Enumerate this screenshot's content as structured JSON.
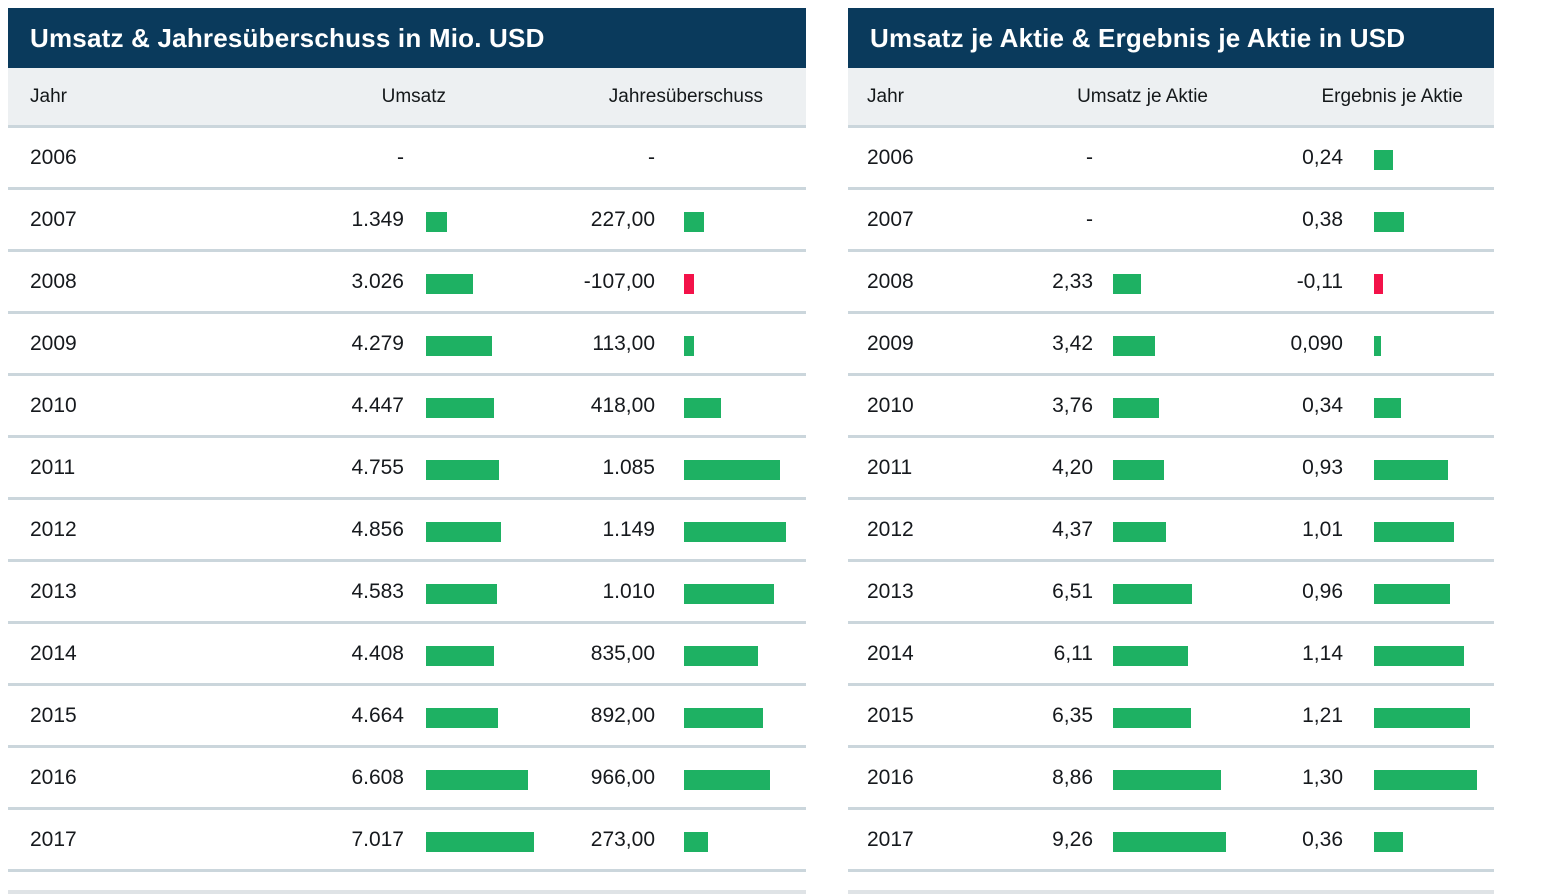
{
  "colors": {
    "positive": "#1eb163",
    "negative": "#f31249",
    "header_bg": "#0a3a5c",
    "subheader_bg": "#edf0f2",
    "separator": "#cbd6dc"
  },
  "tables": [
    {
      "title": "Umsatz & Jahresüberschuss in Mio. USD",
      "columns": [
        "Jahr",
        "Umsatz",
        "Jahresüberschuss"
      ],
      "rows": [
        {
          "year": "2006",
          "v1": "-",
          "n1": null,
          "v2": "-",
          "n2": null
        },
        {
          "year": "2007",
          "v1": "1.349",
          "n1": 1349,
          "v2": "227,00",
          "n2": 227
        },
        {
          "year": "2008",
          "v1": "3.026",
          "n1": 3026,
          "v2": "-107,00",
          "n2": -107
        },
        {
          "year": "2009",
          "v1": "4.279",
          "n1": 4279,
          "v2": "113,00",
          "n2": 113
        },
        {
          "year": "2010",
          "v1": "4.447",
          "n1": 4447,
          "v2": "418,00",
          "n2": 418
        },
        {
          "year": "2011",
          "v1": "4.755",
          "n1": 4755,
          "v2": "1.085",
          "n2": 1085
        },
        {
          "year": "2012",
          "v1": "4.856",
          "n1": 4856,
          "v2": "1.149",
          "n2": 1149
        },
        {
          "year": "2013",
          "v1": "4.583",
          "n1": 4583,
          "v2": "1.010",
          "n2": 1010
        },
        {
          "year": "2014",
          "v1": "4.408",
          "n1": 4408,
          "v2": "835,00",
          "n2": 835
        },
        {
          "year": "2015",
          "v1": "4.664",
          "n1": 4664,
          "v2": "892,00",
          "n2": 892
        },
        {
          "year": "2016",
          "v1": "6.608",
          "n1": 6608,
          "v2": "966,00",
          "n2": 966
        },
        {
          "year": "2017",
          "v1": "7.017",
          "n1": 7017,
          "v2": "273,00",
          "n2": 273
        }
      ]
    },
    {
      "title": "Umsatz je Aktie & Ergebnis je Aktie in USD",
      "columns": [
        "Jahr",
        "Umsatz je Aktie",
        "Ergebnis je Aktie"
      ],
      "rows": [
        {
          "year": "2006",
          "v1": "-",
          "n1": null,
          "v2": "0,24",
          "n2": 0.24
        },
        {
          "year": "2007",
          "v1": "-",
          "n1": null,
          "v2": "0,38",
          "n2": 0.38
        },
        {
          "year": "2008",
          "v1": "2,33",
          "n1": 2.33,
          "v2": "-0,11",
          "n2": -0.11
        },
        {
          "year": "2009",
          "v1": "3,42",
          "n1": 3.42,
          "v2": "0,090",
          "n2": 0.09
        },
        {
          "year": "2010",
          "v1": "3,76",
          "n1": 3.76,
          "v2": "0,34",
          "n2": 0.34
        },
        {
          "year": "2011",
          "v1": "4,20",
          "n1": 4.2,
          "v2": "0,93",
          "n2": 0.93
        },
        {
          "year": "2012",
          "v1": "4,37",
          "n1": 4.37,
          "v2": "1,01",
          "n2": 1.01
        },
        {
          "year": "2013",
          "v1": "6,51",
          "n1": 6.51,
          "v2": "0,96",
          "n2": 0.96
        },
        {
          "year": "2014",
          "v1": "6,11",
          "n1": 6.11,
          "v2": "1,14",
          "n2": 1.14
        },
        {
          "year": "2015",
          "v1": "6,35",
          "n1": 6.35,
          "v2": "1,21",
          "n2": 1.21
        },
        {
          "year": "2016",
          "v1": "8,86",
          "n1": 8.86,
          "v2": "1,30",
          "n2": 1.3
        },
        {
          "year": "2017",
          "v1": "9,26",
          "n1": 9.26,
          "v2": "0,36",
          "n2": 0.36
        }
      ]
    }
  ],
  "chart_data": [
    {
      "type": "table",
      "title": "Umsatz & Jahresüberschuss in Mio. USD",
      "columns": [
        "Jahr",
        "Umsatz",
        "Jahresüberschuss"
      ],
      "years": [
        "2006",
        "2007",
        "2008",
        "2009",
        "2010",
        "2011",
        "2012",
        "2013",
        "2014",
        "2015",
        "2016",
        "2017"
      ],
      "series": [
        {
          "name": "Umsatz",
          "values": [
            null,
            1349,
            3026,
            4279,
            4447,
            4755,
            4856,
            4583,
            4408,
            4664,
            6608,
            7017
          ]
        },
        {
          "name": "Jahresüberschuss",
          "values": [
            null,
            227,
            -107,
            113,
            418,
            1085,
            1149,
            1010,
            835,
            892,
            966,
            273
          ]
        }
      ],
      "bars": "inline horizontal bars per cell, width proportional to column maximum; green = positive, red = negative"
    },
    {
      "type": "table",
      "title": "Umsatz je Aktie & Ergebnis je Aktie in USD",
      "columns": [
        "Jahr",
        "Umsatz je Aktie",
        "Ergebnis je Aktie"
      ],
      "years": [
        "2006",
        "2007",
        "2008",
        "2009",
        "2010",
        "2011",
        "2012",
        "2013",
        "2014",
        "2015",
        "2016",
        "2017"
      ],
      "series": [
        {
          "name": "Umsatz je Aktie",
          "values": [
            null,
            null,
            2.33,
            3.42,
            3.76,
            4.2,
            4.37,
            6.51,
            6.11,
            6.35,
            8.86,
            9.26
          ]
        },
        {
          "name": "Ergebnis je Aktie",
          "values": [
            0.24,
            0.38,
            -0.11,
            0.09,
            0.34,
            0.93,
            1.01,
            0.96,
            1.14,
            1.21,
            1.3,
            0.36
          ]
        }
      ],
      "bars": "inline horizontal bars per cell, width proportional to column maximum; green = positive, red = negative"
    }
  ]
}
